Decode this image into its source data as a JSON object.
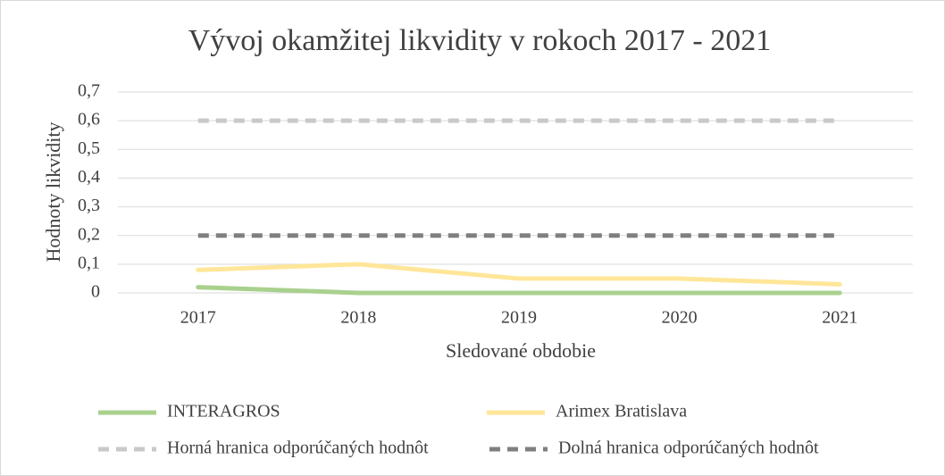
{
  "chart_data": {
    "type": "line",
    "title": "Vývoj okamžitej likvidity v rokoch 2017 - 2021",
    "x_label": "Sledované obdobie",
    "y_label": "Hodnoty likvidity",
    "categories": [
      "2017",
      "2018",
      "2019",
      "2020",
      "2021"
    ],
    "series": [
      {
        "name": "INTERAGROS",
        "color": "#a9d18e",
        "dashed": false,
        "values": [
          0.02,
          0,
          0,
          0,
          0
        ]
      },
      {
        "name": "Arimex Bratislava",
        "color": "#ffe699",
        "dashed": false,
        "values": [
          0.08,
          0.1,
          0.05,
          0.05,
          0.03
        ]
      },
      {
        "name": "Horná hranica odporúčaných hodnôt",
        "color": "#c9c9c9",
        "dashed": true,
        "values": [
          0.6,
          0.6,
          0.6,
          0.6,
          0.6
        ]
      },
      {
        "name": "Dolná hranica odporúčaných hodnôt",
        "color": "#7f7f7f",
        "dashed": true,
        "values": [
          0.2,
          0.2,
          0.2,
          0.2,
          0.2
        ]
      }
    ],
    "ylim": [
      0,
      0.7
    ],
    "yticks": [
      0,
      {
        "value": 0.1,
        "label": "0,1"
      },
      {
        "value": 0.2,
        "label": "0,2"
      },
      {
        "value": 0.3,
        "label": "0,3"
      },
      {
        "value": 0.4,
        "label": "0,4"
      },
      {
        "value": 0.5,
        "label": "0,5"
      },
      {
        "value": 0.6,
        "label": "0,6"
      },
      {
        "value": 0.7,
        "label": "0,7"
      }
    ],
    "grid": true,
    "legend": "bottom"
  }
}
